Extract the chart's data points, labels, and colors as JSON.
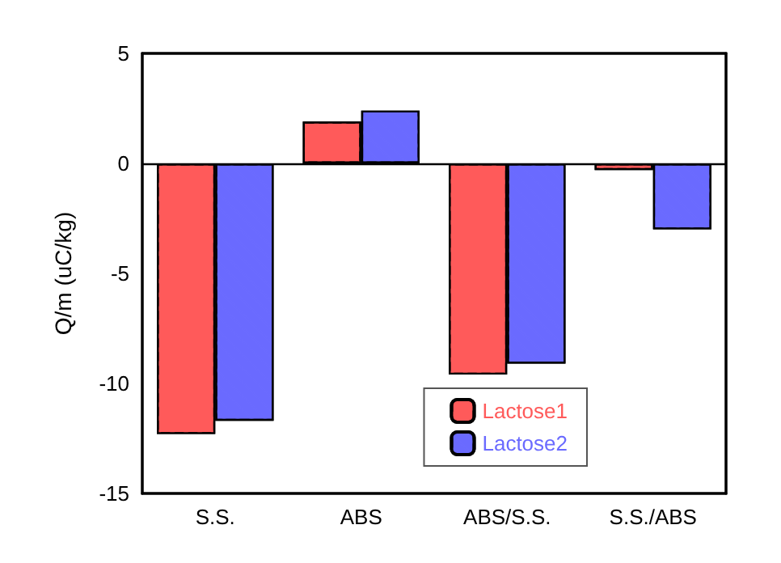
{
  "chart_data": {
    "type": "bar",
    "ylabel": "Q/m (uC/kg)",
    "categories": [
      "S.S.",
      "ABS",
      "ABS/S.S.",
      "S.S./ABS"
    ],
    "series": [
      {
        "name": "Lactose1",
        "color": "#ff5a5a",
        "values": [
          -12.3,
          1.9,
          -9.6,
          -0.3
        ]
      },
      {
        "name": "Lactose2",
        "color": "#6a6aff",
        "values": [
          -11.7,
          2.4,
          -9.1,
          -3.0
        ]
      }
    ],
    "ylim": [
      -15,
      5
    ],
    "yticks": [
      -15,
      -10,
      -5,
      0,
      5
    ],
    "grid": false,
    "legend": "bottom right",
    "ref_lines": [
      {
        "axis": "y",
        "value": 0,
        "color": "#000000"
      }
    ]
  }
}
